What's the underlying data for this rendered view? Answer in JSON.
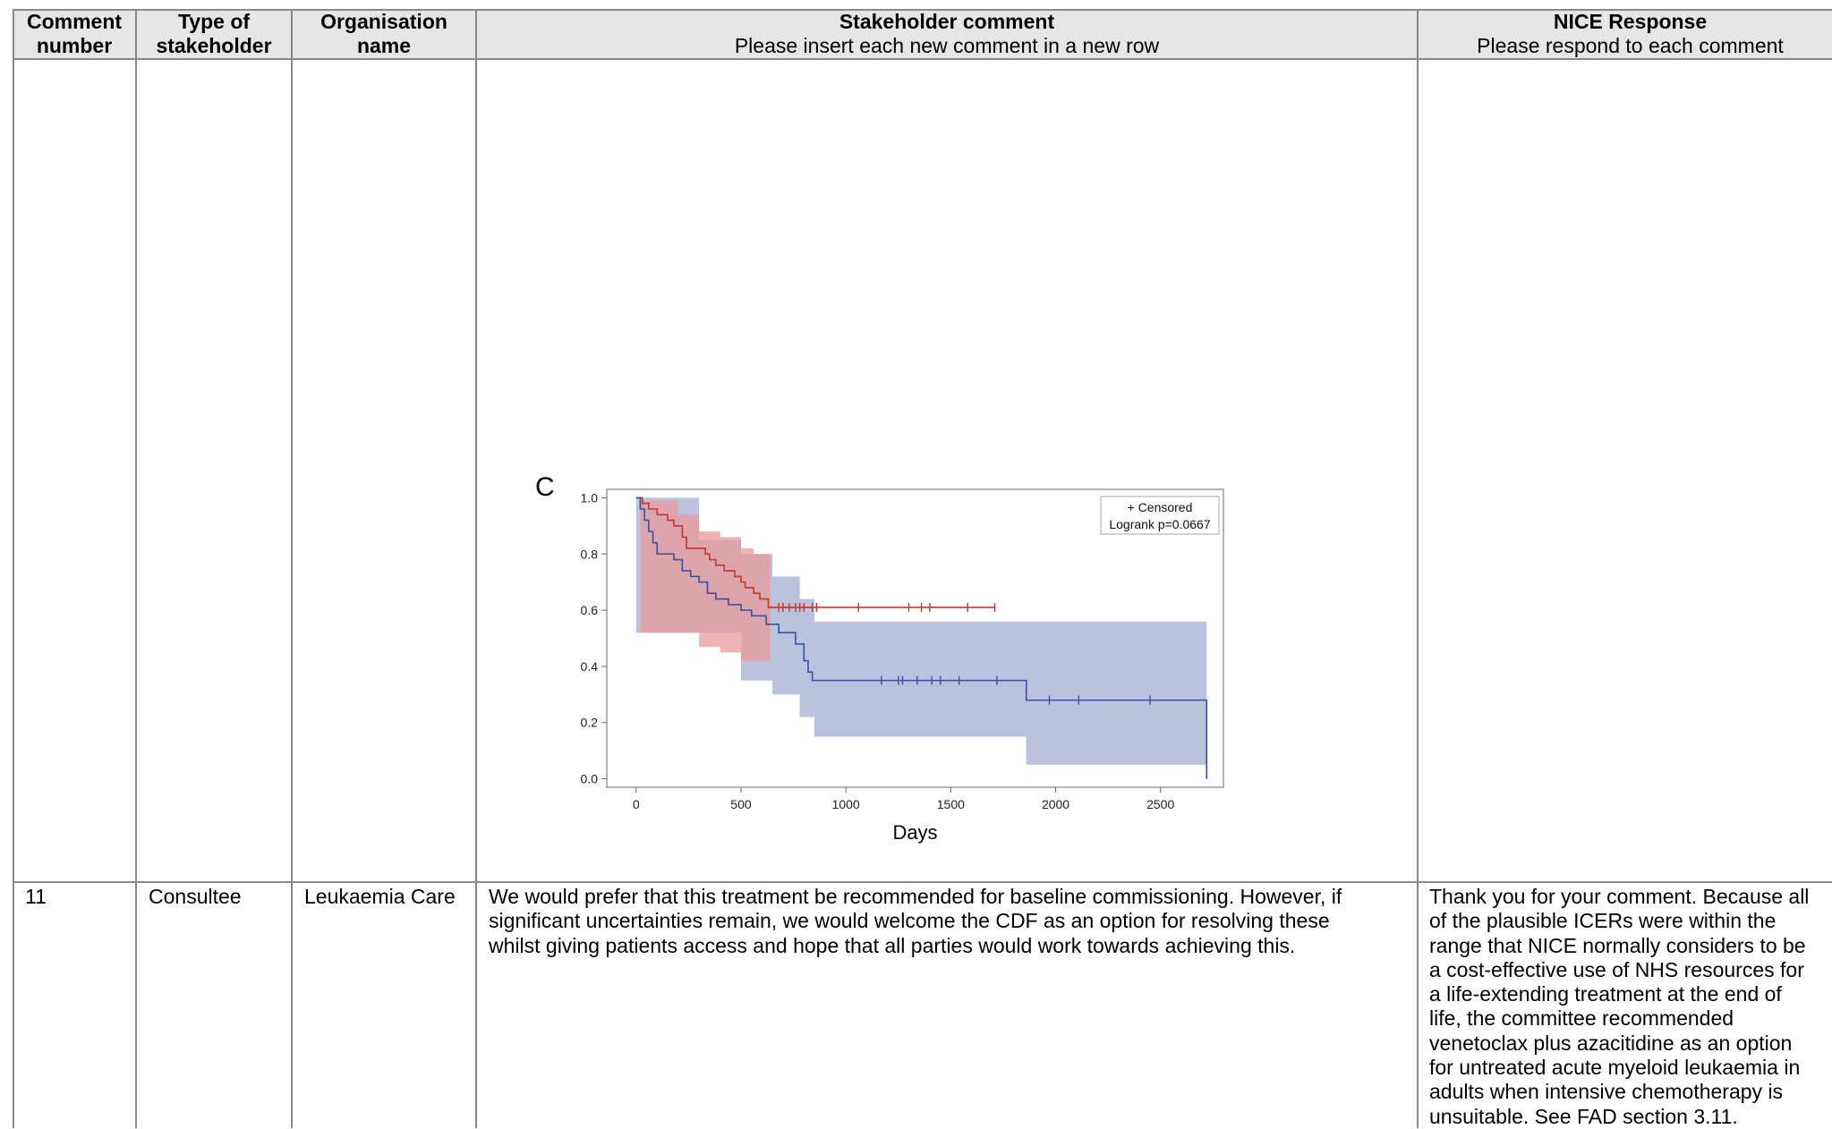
{
  "table": {
    "headers": [
      {
        "title": "Comment\nnumber",
        "subtitle": ""
      },
      {
        "title": "Type of\nstakeholder",
        "subtitle": ""
      },
      {
        "title": "Organisation\nname",
        "subtitle": ""
      },
      {
        "title": "Stakeholder comment",
        "subtitle": "Please insert each new comment in a new row"
      },
      {
        "title": "NICE Response",
        "subtitle": "Please respond to each comment"
      }
    ],
    "rows": [
      {
        "number": "11",
        "type": "Consultee",
        "organisation": "Leukaemia Care",
        "comment": "We would prefer that this treatment be recommended for baseline commissioning. However, if\nsignificant uncertainties remain, we would welcome the CDF as an option for resolving these\nwhilst giving patients access and hope that all parties would work towards achieving this.",
        "response": "Thank you for your comment. Because all\nof the plausible ICERs were within the\nrange that NICE normally considers to be\na cost-effective use of NHS resources for\na life-extending treatment at the end of\nlife, the committee recommended\nvenetoclax plus azacitidine as an option\nfor untreated acute myeloid leukaemia in\nadults when intensive chemotherapy is\nunsuitable. See FAD section 3.11."
      }
    ]
  },
  "chart_data": {
    "type": "line",
    "panel_label": "C",
    "xlabel": "Days",
    "ylabel": "",
    "xlim": [
      -140,
      2800
    ],
    "ylim": [
      -0.03,
      1.03
    ],
    "xticks": [
      0,
      500,
      1000,
      1500,
      2000,
      2500
    ],
    "yticks": [
      0.0,
      0.2,
      0.4,
      0.6,
      0.8,
      1.0
    ],
    "legend": {
      "placement": "top-right",
      "lines": [
        "+ Censored",
        "Logrank p=0.0667"
      ]
    },
    "colors": {
      "red_line": "#c0392b",
      "red_band": "#e89a9a",
      "blue_line": "#3a4fa0",
      "blue_band": "#a9b3d6"
    },
    "series": [
      {
        "color": "red",
        "steps": [
          [
            0,
            1.0
          ],
          [
            30,
            0.98
          ],
          [
            60,
            0.96
          ],
          [
            100,
            0.94
          ],
          [
            150,
            0.92
          ],
          [
            180,
            0.9
          ],
          [
            220,
            0.86
          ],
          [
            240,
            0.82
          ],
          [
            330,
            0.8
          ],
          [
            350,
            0.78
          ],
          [
            380,
            0.76
          ],
          [
            420,
            0.74
          ],
          [
            470,
            0.72
          ],
          [
            500,
            0.7
          ],
          [
            520,
            0.68
          ],
          [
            560,
            0.66
          ],
          [
            590,
            0.64
          ],
          [
            630,
            0.61
          ],
          [
            1710,
            0.61
          ]
        ],
        "censored_x": [
          680,
          700,
          730,
          760,
          780,
          800,
          840,
          860,
          1060,
          1300,
          1360,
          1400,
          1580,
          1710
        ],
        "band": [
          [
            20,
            0.99,
            0.52
          ],
          [
            200,
            0.94,
            0.52
          ],
          [
            300,
            0.88,
            0.47
          ],
          [
            400,
            0.86,
            0.45
          ],
          [
            500,
            0.82,
            0.42
          ],
          [
            560,
            0.8,
            0.42
          ],
          [
            640,
            0.73,
            0.42
          ]
        ]
      },
      {
        "color": "blue",
        "steps": [
          [
            0,
            1.0
          ],
          [
            20,
            0.96
          ],
          [
            40,
            0.92
          ],
          [
            60,
            0.88
          ],
          [
            80,
            0.84
          ],
          [
            100,
            0.8
          ],
          [
            180,
            0.78
          ],
          [
            220,
            0.74
          ],
          [
            260,
            0.72
          ],
          [
            300,
            0.7
          ],
          [
            340,
            0.66
          ],
          [
            380,
            0.64
          ],
          [
            440,
            0.62
          ],
          [
            500,
            0.6
          ],
          [
            550,
            0.58
          ],
          [
            620,
            0.55
          ],
          [
            680,
            0.52
          ],
          [
            760,
            0.48
          ],
          [
            800,
            0.42
          ],
          [
            820,
            0.38
          ],
          [
            840,
            0.35
          ],
          [
            1860,
            0.28
          ],
          [
            2720,
            0.28
          ],
          [
            2720,
            0.0
          ]
        ],
        "censored_x": [
          1170,
          1250,
          1270,
          1340,
          1410,
          1450,
          1540,
          1720,
          1970,
          2110,
          2450
        ],
        "band": [
          [
            0,
            1.0,
            0.52
          ],
          [
            300,
            0.85,
            0.52
          ],
          [
            500,
            0.8,
            0.35
          ],
          [
            650,
            0.72,
            0.3
          ],
          [
            780,
            0.64,
            0.22
          ],
          [
            850,
            0.56,
            0.15
          ],
          [
            1850,
            0.56,
            0.15
          ],
          [
            1860,
            0.56,
            0.05
          ],
          [
            2720,
            0.56,
            0.05
          ]
        ]
      }
    ]
  }
}
